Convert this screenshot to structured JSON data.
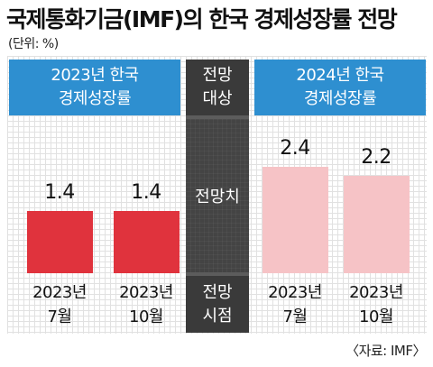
{
  "title": "국제통화기금(IMF)의 한국 경제성장률 전망",
  "unit": "(단위: %)",
  "headers": {
    "left": [
      "2023년 한국",
      "경제성장률"
    ],
    "middle_top": [
      "전망",
      "대상"
    ],
    "right": [
      "2024년 한국",
      "경제성장률"
    ]
  },
  "middle_labels": {
    "value": "전망치",
    "time": [
      "전망",
      "시점"
    ]
  },
  "source": "〈자료: IMF〉",
  "colors": {
    "header_blue": "#2e8fd0",
    "bar_2023": "#e0333d",
    "bar_2024": "#f6c3c6",
    "middle_dark": "#3a3a3a"
  },
  "chart_data": {
    "type": "bar",
    "ylim": [
      0,
      3.5
    ],
    "groups": [
      {
        "target": "2023년 한국 경제성장률",
        "bars": [
          {
            "label_year": "2023년",
            "label_month": "7월",
            "value": 1.4,
            "display": "1.4"
          },
          {
            "label_year": "2023년",
            "label_month": "10월",
            "value": 1.4,
            "display": "1.4"
          }
        ]
      },
      {
        "target": "2024년 한국 경제성장률",
        "bars": [
          {
            "label_year": "2023년",
            "label_month": "7월",
            "value": 2.4,
            "display": "2.4"
          },
          {
            "label_year": "2023년",
            "label_month": "10월",
            "value": 2.2,
            "display": "2.2"
          }
        ]
      }
    ]
  }
}
